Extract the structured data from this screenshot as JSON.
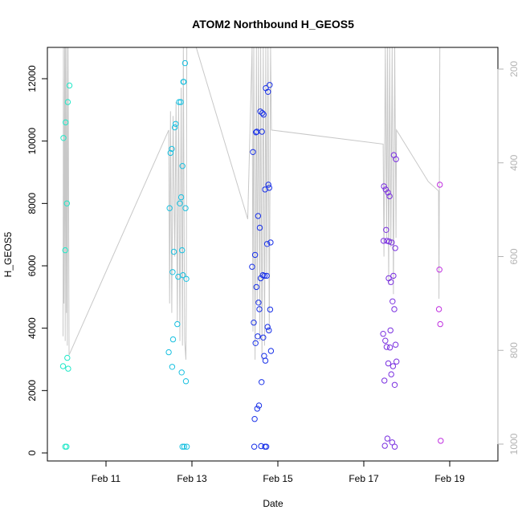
{
  "chart_data": {
    "type": "scatter",
    "title": "ATOM2 Northbound H_GEOS5",
    "xlabel": "Date",
    "ylabel": "H_GEOS5",
    "xlim": [
      0,
      11.0
    ],
    "ylim": [
      0,
      13000
    ],
    "y2lim": [
      1050,
      140
    ],
    "x_ticks": [
      {
        "value": 1,
        "label": "Feb 11"
      },
      {
        "value": 3,
        "label": "Feb 13"
      },
      {
        "value": 5,
        "label": "Feb 15"
      },
      {
        "value": 7,
        "label": "Feb 17"
      },
      {
        "value": 9,
        "label": "Feb 19"
      }
    ],
    "y_ticks": [
      0,
      2000,
      4000,
      6000,
      8000,
      10000,
      12000
    ],
    "y2_ticks": [
      200,
      400,
      600,
      800,
      1000
    ],
    "colors": {
      "axis": "#000000",
      "secondary_axis": "#b3b3b3",
      "pressure_line": "#c8c8c8",
      "leg1": "#20e8c8",
      "leg2": "#18c0e0",
      "leg3": "#1830e8",
      "leg4": "#7a30e0",
      "leg5": "#c030e0"
    },
    "series": [
      {
        "values": [
          {
            "x": 0.0,
            "y": 2780,
            "c": "leg1"
          },
          {
            "x": 0.01,
            "y": 10100,
            "c": "leg1"
          },
          {
            "x": 0.05,
            "y": 200,
            "c": "leg1"
          },
          {
            "x": 0.08,
            "y": 200,
            "c": "leg1"
          },
          {
            "x": 0.05,
            "y": 6500,
            "c": "leg1"
          },
          {
            "x": 0.06,
            "y": 10600,
            "c": "leg1"
          },
          {
            "x": 0.09,
            "y": 8000,
            "c": "leg1"
          },
          {
            "x": 0.1,
            "y": 3050,
            "c": "leg1"
          },
          {
            "x": 0.11,
            "y": 11250,
            "c": "leg1"
          },
          {
            "x": 0.12,
            "y": 2700,
            "c": "leg1"
          },
          {
            "x": 0.15,
            "y": 11780,
            "c": "leg1"
          },
          {
            "x": 2.46,
            "y": 3230,
            "c": "leg2"
          },
          {
            "x": 2.48,
            "y": 7850,
            "c": "leg2"
          },
          {
            "x": 2.5,
            "y": 9620,
            "c": "leg2"
          },
          {
            "x": 2.53,
            "y": 9750,
            "c": "leg2"
          },
          {
            "x": 2.54,
            "y": 2760,
            "c": "leg2"
          },
          {
            "x": 2.55,
            "y": 5800,
            "c": "leg2"
          },
          {
            "x": 2.56,
            "y": 3640,
            "c": "leg2"
          },
          {
            "x": 2.58,
            "y": 6450,
            "c": "leg2"
          },
          {
            "x": 2.6,
            "y": 10440,
            "c": "leg2"
          },
          {
            "x": 2.62,
            "y": 10550,
            "c": "leg2"
          },
          {
            "x": 2.66,
            "y": 4130,
            "c": "leg2"
          },
          {
            "x": 2.68,
            "y": 5650,
            "c": "leg2"
          },
          {
            "x": 2.7,
            "y": 11250,
            "c": "leg2"
          },
          {
            "x": 2.72,
            "y": 8000,
            "c": "leg2"
          },
          {
            "x": 2.74,
            "y": 11250,
            "c": "leg2"
          },
          {
            "x": 2.75,
            "y": 8200,
            "c": "leg2"
          },
          {
            "x": 2.76,
            "y": 2580,
            "c": "leg2"
          },
          {
            "x": 2.77,
            "y": 6500,
            "c": "leg2"
          },
          {
            "x": 2.78,
            "y": 9200,
            "c": "leg2"
          },
          {
            "x": 2.79,
            "y": 5700,
            "c": "leg2"
          },
          {
            "x": 2.8,
            "y": 11900,
            "c": "leg2"
          },
          {
            "x": 2.81,
            "y": 11900,
            "c": "leg2"
          },
          {
            "x": 2.82,
            "y": 200,
            "c": "leg2"
          },
          {
            "x": 2.85,
            "y": 7850,
            "c": "leg2"
          },
          {
            "x": 2.86,
            "y": 2300,
            "c": "leg2"
          },
          {
            "x": 2.87,
            "y": 5580,
            "c": "leg2"
          },
          {
            "x": 2.88,
            "y": 200,
            "c": "leg2"
          },
          {
            "x": 2.84,
            "y": 12500,
            "c": "leg2"
          },
          {
            "x": 2.78,
            "y": 200,
            "c": "leg2"
          },
          {
            "x": 4.4,
            "y": 5970,
            "c": "leg3"
          },
          {
            "x": 4.42,
            "y": 9650,
            "c": "leg3"
          },
          {
            "x": 4.44,
            "y": 4180,
            "c": "leg3"
          },
          {
            "x": 4.45,
            "y": 200,
            "c": "leg3"
          },
          {
            "x": 4.46,
            "y": 1090,
            "c": "leg3"
          },
          {
            "x": 4.47,
            "y": 6350,
            "c": "leg3"
          },
          {
            "x": 4.48,
            "y": 3520,
            "c": "leg3"
          },
          {
            "x": 4.49,
            "y": 10280,
            "c": "leg3"
          },
          {
            "x": 4.5,
            "y": 5320,
            "c": "leg3"
          },
          {
            "x": 4.51,
            "y": 10300,
            "c": "leg3"
          },
          {
            "x": 4.52,
            "y": 1420,
            "c": "leg3"
          },
          {
            "x": 4.53,
            "y": 3740,
            "c": "leg3"
          },
          {
            "x": 4.54,
            "y": 7600,
            "c": "leg3"
          },
          {
            "x": 4.55,
            "y": 4820,
            "c": "leg3"
          },
          {
            "x": 4.56,
            "y": 1520,
            "c": "leg3"
          },
          {
            "x": 4.57,
            "y": 4610,
            "c": "leg3"
          },
          {
            "x": 4.58,
            "y": 7220,
            "c": "leg3"
          },
          {
            "x": 4.59,
            "y": 10950,
            "c": "leg3"
          },
          {
            "x": 4.6,
            "y": 5600,
            "c": "leg3"
          },
          {
            "x": 4.61,
            "y": 220,
            "c": "leg3"
          },
          {
            "x": 4.62,
            "y": 2270,
            "c": "leg3"
          },
          {
            "x": 4.63,
            "y": 10300,
            "c": "leg3"
          },
          {
            "x": 4.64,
            "y": 10900,
            "c": "leg3"
          },
          {
            "x": 4.65,
            "y": 5700,
            "c": "leg3"
          },
          {
            "x": 4.66,
            "y": 3700,
            "c": "leg3"
          },
          {
            "x": 4.67,
            "y": 10850,
            "c": "leg3"
          },
          {
            "x": 4.68,
            "y": 3110,
            "c": "leg3"
          },
          {
            "x": 4.69,
            "y": 5680,
            "c": "leg3"
          },
          {
            "x": 4.7,
            "y": 8450,
            "c": "leg3"
          },
          {
            "x": 4.71,
            "y": 2960,
            "c": "leg3"
          },
          {
            "x": 4.72,
            "y": 11700,
            "c": "leg3"
          },
          {
            "x": 4.73,
            "y": 200,
            "c": "leg3"
          },
          {
            "x": 4.74,
            "y": 5680,
            "c": "leg3"
          },
          {
            "x": 4.75,
            "y": 6700,
            "c": "leg3"
          },
          {
            "x": 4.76,
            "y": 4040,
            "c": "leg3"
          },
          {
            "x": 4.77,
            "y": 11580,
            "c": "leg3"
          },
          {
            "x": 4.78,
            "y": 8600,
            "c": "leg3"
          },
          {
            "x": 4.79,
            "y": 3930,
            "c": "leg3"
          },
          {
            "x": 4.8,
            "y": 8500,
            "c": "leg3"
          },
          {
            "x": 4.81,
            "y": 11800,
            "c": "leg3"
          },
          {
            "x": 4.82,
            "y": 4600,
            "c": "leg3"
          },
          {
            "x": 4.83,
            "y": 6750,
            "c": "leg3"
          },
          {
            "x": 4.84,
            "y": 3270,
            "c": "leg3"
          },
          {
            "x": 4.7,
            "y": 200,
            "c": "leg3"
          },
          {
            "x": 7.45,
            "y": 3820,
            "c": "leg4"
          },
          {
            "x": 7.46,
            "y": 6800,
            "c": "leg4"
          },
          {
            "x": 7.47,
            "y": 8550,
            "c": "leg4"
          },
          {
            "x": 7.48,
            "y": 2320,
            "c": "leg4"
          },
          {
            "x": 7.49,
            "y": 230,
            "c": "leg4"
          },
          {
            "x": 7.5,
            "y": 3600,
            "c": "leg4"
          },
          {
            "x": 7.51,
            "y": 8450,
            "c": "leg4"
          },
          {
            "x": 7.52,
            "y": 7150,
            "c": "leg4"
          },
          {
            "x": 7.53,
            "y": 3400,
            "c": "leg4"
          },
          {
            "x": 7.54,
            "y": 6800,
            "c": "leg4"
          },
          {
            "x": 7.55,
            "y": 460,
            "c": "leg4"
          },
          {
            "x": 7.56,
            "y": 8350,
            "c": "leg4"
          },
          {
            "x": 7.57,
            "y": 2870,
            "c": "leg4"
          },
          {
            "x": 7.58,
            "y": 5600,
            "c": "leg4"
          },
          {
            "x": 7.59,
            "y": 6780,
            "c": "leg4"
          },
          {
            "x": 7.6,
            "y": 8230,
            "c": "leg4"
          },
          {
            "x": 7.61,
            "y": 3380,
            "c": "leg4"
          },
          {
            "x": 7.62,
            "y": 3930,
            "c": "leg4"
          },
          {
            "x": 7.63,
            "y": 5480,
            "c": "leg4"
          },
          {
            "x": 7.64,
            "y": 2520,
            "c": "leg4"
          },
          {
            "x": 7.65,
            "y": 6750,
            "c": "leg4"
          },
          {
            "x": 7.66,
            "y": 340,
            "c": "leg4"
          },
          {
            "x": 7.67,
            "y": 4860,
            "c": "leg4"
          },
          {
            "x": 7.68,
            "y": 2780,
            "c": "leg4"
          },
          {
            "x": 7.69,
            "y": 5680,
            "c": "leg4"
          },
          {
            "x": 7.7,
            "y": 9550,
            "c": "leg4"
          },
          {
            "x": 7.71,
            "y": 4610,
            "c": "leg4"
          },
          {
            "x": 7.72,
            "y": 2180,
            "c": "leg4"
          },
          {
            "x": 7.73,
            "y": 6570,
            "c": "leg4"
          },
          {
            "x": 7.74,
            "y": 3470,
            "c": "leg4"
          },
          {
            "x": 7.75,
            "y": 9420,
            "c": "leg4"
          },
          {
            "x": 7.76,
            "y": 2930,
            "c": "leg4"
          },
          {
            "x": 7.72,
            "y": 200,
            "c": "leg4"
          },
          {
            "x": 8.75,
            "y": 4610,
            "c": "leg5"
          },
          {
            "x": 8.76,
            "y": 5880,
            "c": "leg5"
          },
          {
            "x": 8.77,
            "y": 8600,
            "c": "leg5"
          },
          {
            "x": 8.78,
            "y": 4130,
            "c": "leg5"
          },
          {
            "x": 8.79,
            "y": 390,
            "c": "leg5"
          }
        ]
      }
    ],
    "pressure_line": [
      {
        "x": 0.0,
        "p": 770
      },
      {
        "x": 0.01,
        "p": 140
      },
      {
        "x": 0.02,
        "p": 700
      },
      {
        "x": 0.04,
        "p": 140
      },
      {
        "x": 0.05,
        "p": 780
      },
      {
        "x": 0.06,
        "p": 140
      },
      {
        "x": 0.08,
        "p": 720
      },
      {
        "x": 0.09,
        "p": 140
      },
      {
        "x": 0.1,
        "p": 790
      },
      {
        "x": 0.12,
        "p": 140
      },
      {
        "x": 0.14,
        "p": 810
      },
      {
        "x": 2.46,
        "p": 330
      },
      {
        "x": 2.48,
        "p": 700
      },
      {
        "x": 2.5,
        "p": 290
      },
      {
        "x": 2.53,
        "p": 720
      },
      {
        "x": 2.56,
        "p": 300
      },
      {
        "x": 2.6,
        "p": 600
      },
      {
        "x": 2.63,
        "p": 270
      },
      {
        "x": 2.66,
        "p": 740
      },
      {
        "x": 2.69,
        "p": 270
      },
      {
        "x": 2.72,
        "p": 780
      },
      {
        "x": 2.75,
        "p": 240
      },
      {
        "x": 2.78,
        "p": 790
      },
      {
        "x": 2.8,
        "p": 140
      },
      {
        "x": 2.83,
        "p": 780
      },
      {
        "x": 2.86,
        "p": 820
      },
      {
        "x": 2.87,
        "p": 700
      },
      {
        "x": 2.88,
        "p": 140
      },
      {
        "x": 3.1,
        "p": 140
      },
      {
        "x": 4.3,
        "p": 520
      },
      {
        "x": 4.4,
        "p": 140
      },
      {
        "x": 4.42,
        "p": 760
      },
      {
        "x": 4.44,
        "p": 140
      },
      {
        "x": 4.47,
        "p": 820
      },
      {
        "x": 4.5,
        "p": 140
      },
      {
        "x": 4.52,
        "p": 700
      },
      {
        "x": 4.55,
        "p": 140
      },
      {
        "x": 4.58,
        "p": 780
      },
      {
        "x": 4.6,
        "p": 140
      },
      {
        "x": 4.63,
        "p": 820
      },
      {
        "x": 4.66,
        "p": 140
      },
      {
        "x": 4.69,
        "p": 790
      },
      {
        "x": 4.72,
        "p": 140
      },
      {
        "x": 4.74,
        "p": 640
      },
      {
        "x": 4.77,
        "p": 140
      },
      {
        "x": 4.8,
        "p": 760
      },
      {
        "x": 4.83,
        "p": 140
      },
      {
        "x": 4.85,
        "p": 330
      },
      {
        "x": 7.45,
        "p": 360
      },
      {
        "x": 7.47,
        "p": 600
      },
      {
        "x": 7.5,
        "p": 140
      },
      {
        "x": 7.53,
        "p": 560
      },
      {
        "x": 7.55,
        "p": 140
      },
      {
        "x": 7.58,
        "p": 660
      },
      {
        "x": 7.6,
        "p": 140
      },
      {
        "x": 7.63,
        "p": 580
      },
      {
        "x": 7.66,
        "p": 140
      },
      {
        "x": 7.69,
        "p": 680
      },
      {
        "x": 7.72,
        "p": 140
      },
      {
        "x": 7.75,
        "p": 560
      },
      {
        "x": 7.76,
        "p": 330
      },
      {
        "x": 8.5,
        "p": 440
      },
      {
        "x": 8.74,
        "p": 460
      },
      {
        "x": 8.75,
        "p": 690
      },
      {
        "x": 8.77,
        "p": 140
      }
    ]
  }
}
